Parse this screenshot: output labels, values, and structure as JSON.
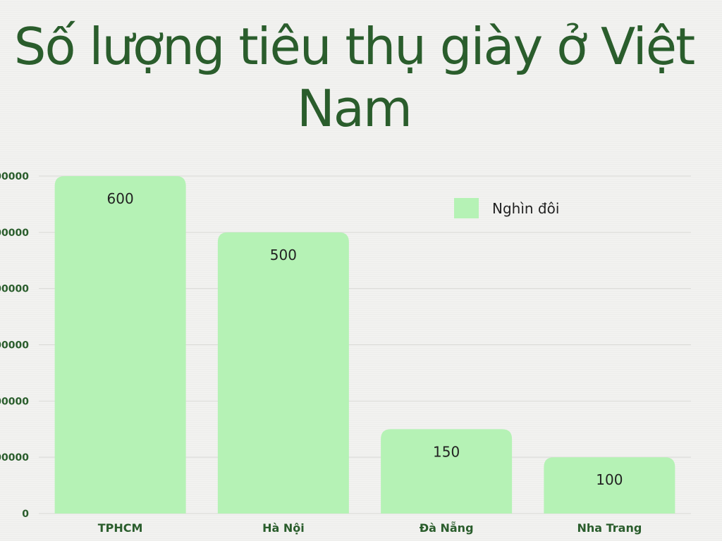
{
  "chart_data": {
    "type": "bar",
    "title": "Số lượng tiêu thụ giày ở Việt Nam",
    "xlabel": "",
    "ylabel": "",
    "categories": [
      "TPHCM",
      "Hà Nội",
      "Đà Nẵng",
      "Nha Trang"
    ],
    "series": [
      {
        "name": "Nghìn đôi",
        "values": [
          600,
          500,
          150,
          100
        ]
      }
    ],
    "data_labels": [
      "600",
      "500",
      "150",
      "100"
    ],
    "y_tick_labels": [
      "0",
      "00000",
      "00000",
      "00000",
      "00000",
      "00000",
      "00000"
    ],
    "ylim": [
      0,
      600
    ],
    "grid": true,
    "legend_position": "top-right"
  },
  "colors": {
    "bar": "#b5f2b5",
    "title": "#2a5d2c",
    "axis_text": "#2a5d2c",
    "grid": "#d9d9d6",
    "label": "#222222"
  }
}
